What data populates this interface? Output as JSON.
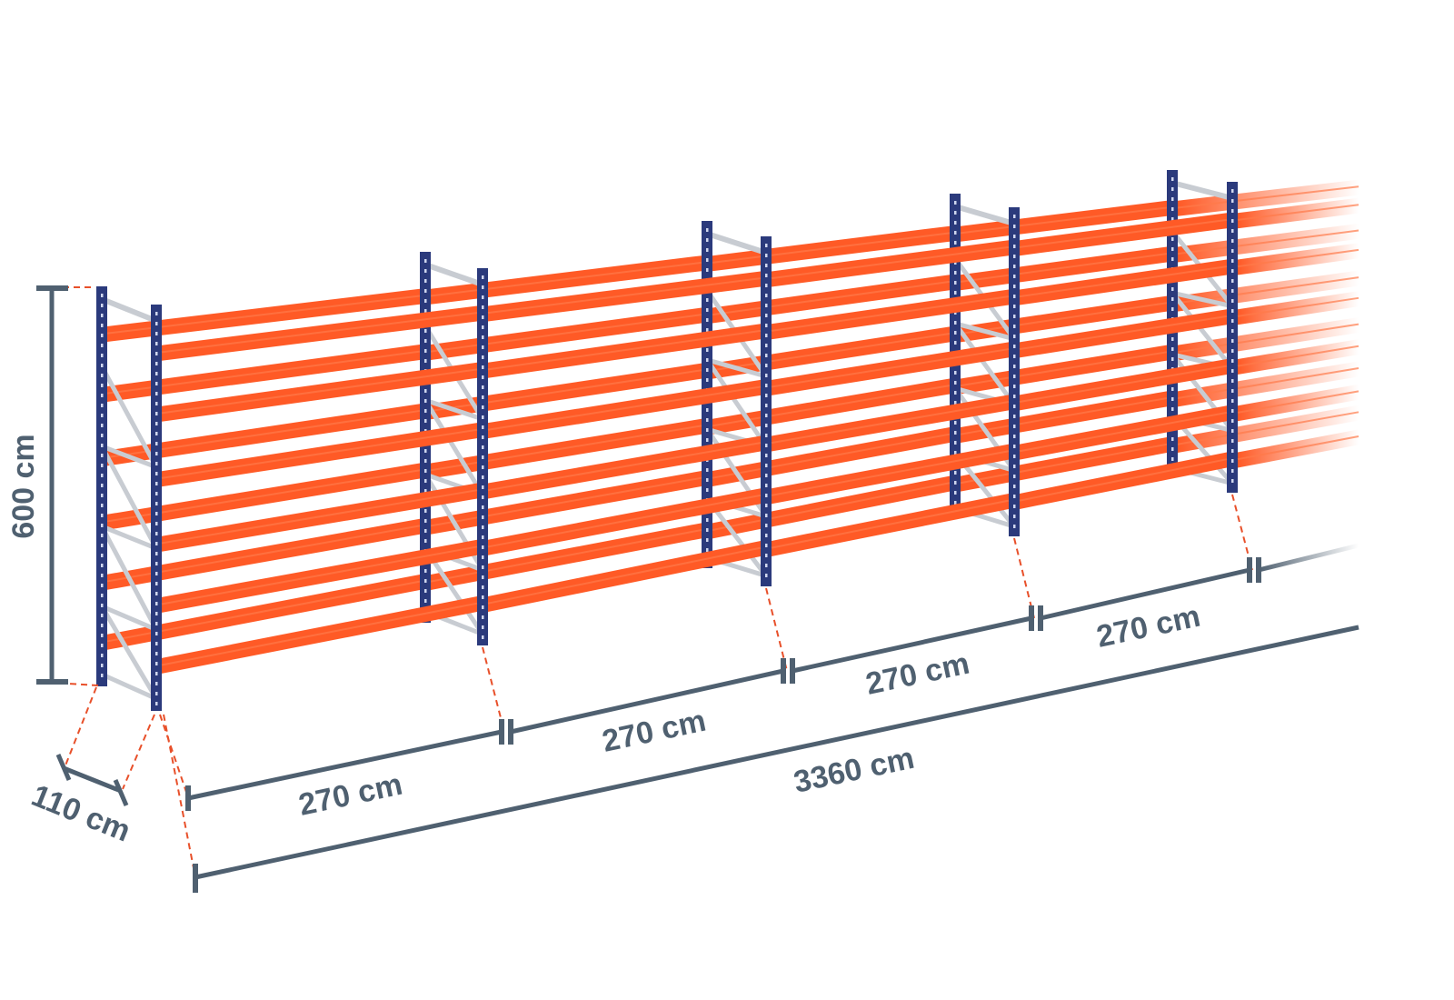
{
  "colors": {
    "upright": "#2b3a7c",
    "beam": "#ff5a26",
    "brace": "#c8ccd2",
    "dimension": "#4f6070",
    "guide": "#e8502a"
  },
  "dimensions": {
    "height": "600 cm",
    "depth": "110 cm",
    "bay_widths": [
      "270 cm",
      "270 cm",
      "270 cm",
      "270 cm"
    ],
    "total_length": "3360 cm"
  }
}
